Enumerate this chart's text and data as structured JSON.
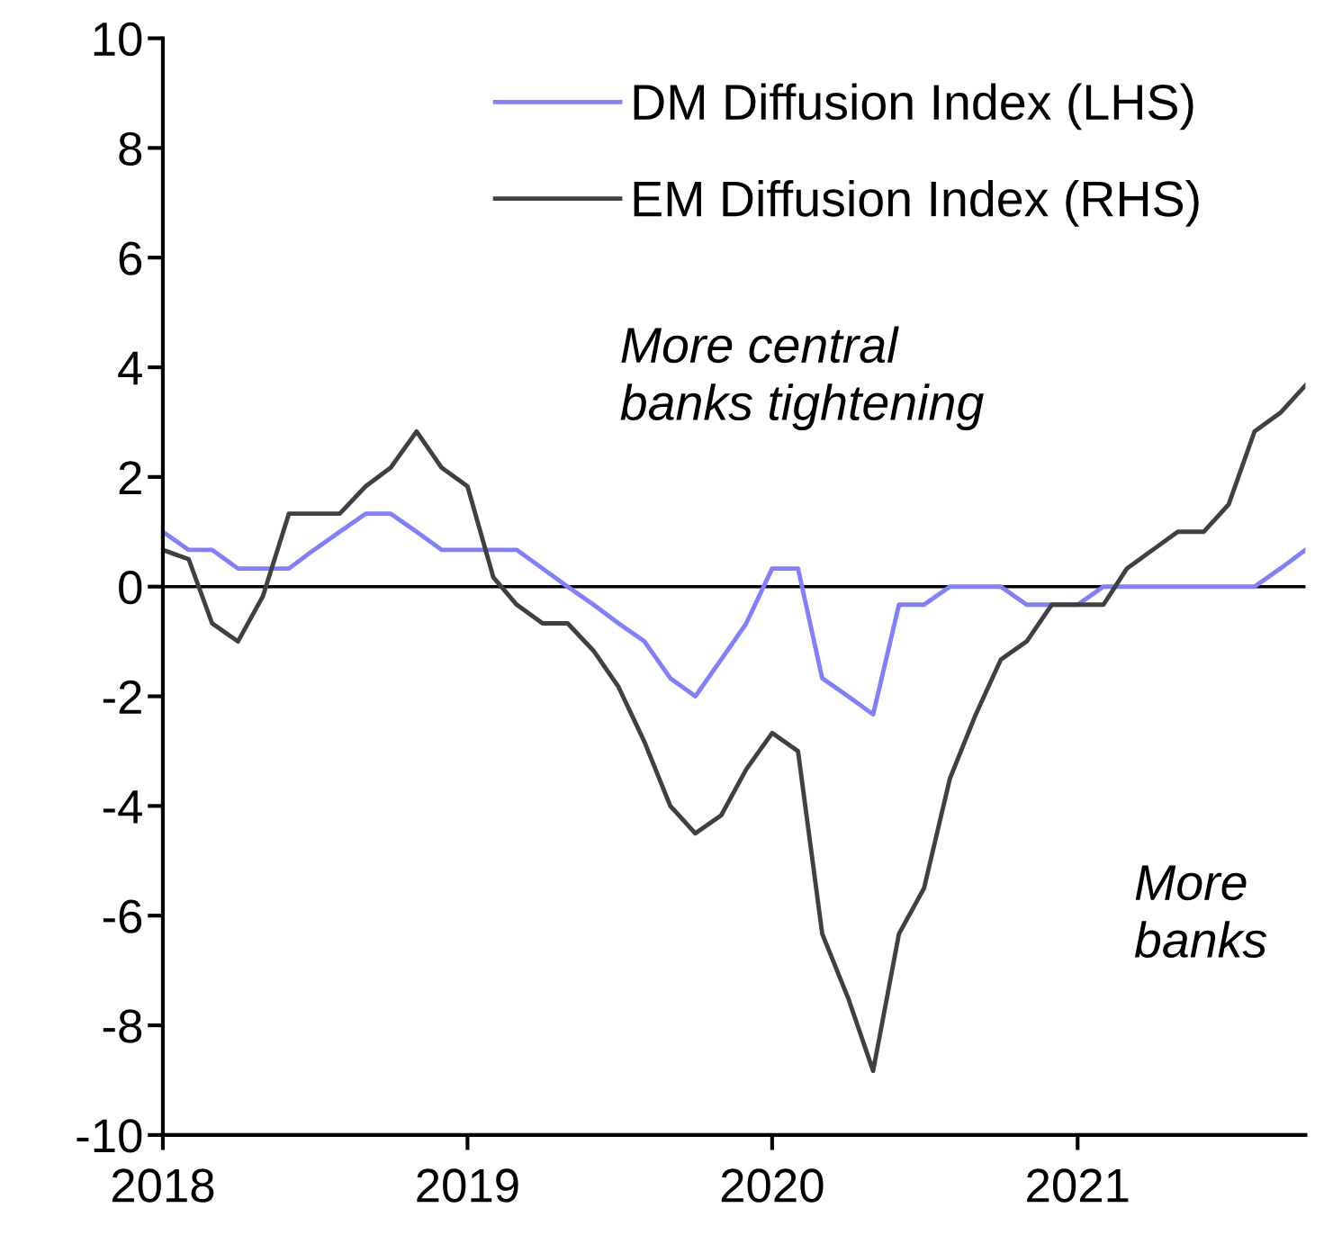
{
  "chart_data": {
    "type": "line",
    "x": [
      "2018-01",
      "2018-02",
      "2018-03",
      "2018-04",
      "2018-05",
      "2018-06",
      "2018-07",
      "2018-08",
      "2018-09",
      "2018-10",
      "2018-11",
      "2018-12",
      "2019-01",
      "2019-02",
      "2019-03",
      "2019-04",
      "2019-05",
      "2019-06",
      "2019-07",
      "2019-08",
      "2019-09",
      "2019-10",
      "2019-11",
      "2019-12",
      "2020-01",
      "2020-02",
      "2020-03",
      "2020-04",
      "2020-05",
      "2020-06",
      "2020-07",
      "2020-08",
      "2020-09",
      "2020-10",
      "2020-11",
      "2020-12",
      "2021-01",
      "2021-02",
      "2021-03",
      "2021-04",
      "2021-05",
      "2021-06",
      "2021-07",
      "2021-08",
      "2021-09",
      "2021-10"
    ],
    "series": [
      {
        "name": "DM Diffusion Index (LHS)",
        "color": "#7f7fff",
        "values": [
          1.0,
          0.67,
          0.67,
          0.33,
          0.33,
          0.33,
          0.67,
          1.0,
          1.33,
          1.33,
          1.0,
          0.67,
          0.67,
          0.67,
          0.67,
          0.33,
          0.0,
          -0.33,
          -0.67,
          -1.0,
          -1.67,
          -2.0,
          -1.33,
          -0.67,
          0.33,
          0.33,
          -1.67,
          -2.0,
          -2.33,
          -0.33,
          -0.33,
          0.0,
          0.0,
          0.0,
          -0.33,
          -0.33,
          -0.33,
          0.0,
          0.0,
          0.0,
          0.0,
          0.0,
          0.0,
          0.0,
          0.33,
          0.67
        ]
      },
      {
        "name": "EM Diffusion Index (RHS)",
        "color": "#404040",
        "values": [
          0.67,
          0.5,
          -0.67,
          -1.0,
          -0.17,
          1.33,
          1.33,
          1.33,
          1.83,
          2.17,
          2.83,
          2.17,
          1.83,
          0.17,
          -0.33,
          -0.67,
          -0.67,
          -1.17,
          -1.83,
          -2.83,
          -4.0,
          -4.5,
          -4.17,
          -3.33,
          -2.67,
          -3.0,
          -6.33,
          -7.5,
          -8.83,
          -6.33,
          -5.5,
          -3.5,
          -2.33,
          -1.33,
          -1.0,
          -0.33,
          -0.33,
          -0.33,
          0.33,
          0.67,
          1.0,
          1.0,
          1.5,
          2.83,
          3.17,
          3.67
        ]
      }
    ],
    "xlim": [
      "2018-01",
      "2021-10"
    ],
    "xticks": [
      {
        "value": "2018-01",
        "label": "2018"
      },
      {
        "value": "2019-01",
        "label": "2019"
      },
      {
        "value": "2020-01",
        "label": "2020"
      },
      {
        "value": "2021-01",
        "label": "2021"
      }
    ],
    "ylim": [
      -10,
      10
    ],
    "yticks": [
      -10,
      -8,
      -6,
      -4,
      -2,
      0,
      2,
      4,
      6,
      8,
      10
    ],
    "ref_lines": [
      {
        "axis": "y",
        "value": 0,
        "color": "#000000"
      }
    ],
    "annotations": [
      "More central\nbanks tightening",
      "More\nbanks"
    ],
    "legend": "top",
    "grid": false,
    "marker": "none",
    "line_style": "solid"
  }
}
